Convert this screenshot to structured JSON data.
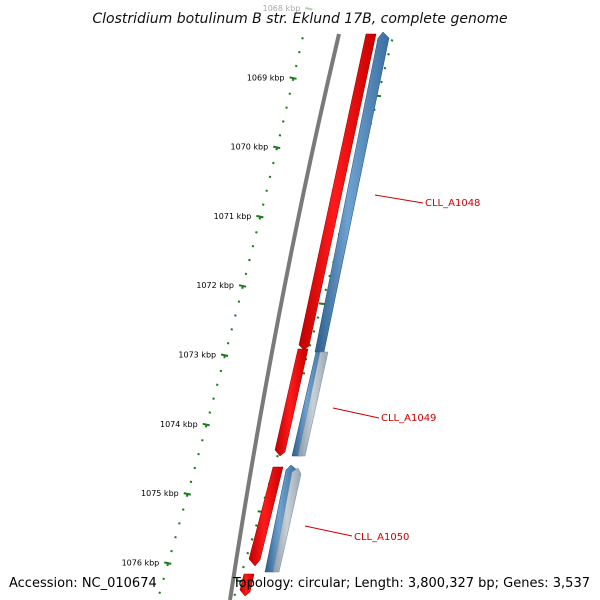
{
  "title": "Clostridium botulinum B str. Eklund 17B, complete genome",
  "footer": {
    "accession": "Accession: NC_010674",
    "summary": "Topology: circular; Length: 3,800,327 bp; Genes: 3,537"
  },
  "colors": {
    "backbone": "#777777",
    "forward_strand": "#ff0000",
    "reverse_strand": "#4a86bd",
    "reverse_strand_light": "#aab8c4",
    "tick": "#1e7a1e",
    "gene_label": "#cc0000"
  },
  "ticks": [
    {
      "label": "1068 kbp",
      "faded": true
    },
    {
      "label": "1069 kbp"
    },
    {
      "label": "1070 kbp"
    },
    {
      "label": "1071 kbp"
    },
    {
      "label": "1072 kbp"
    },
    {
      "label": "1073 kbp"
    },
    {
      "label": "1074 kbp"
    },
    {
      "label": "1075 kbp"
    },
    {
      "label": "1076 kbp"
    }
  ],
  "genes": [
    {
      "name": "CLL_A1048"
    },
    {
      "name": "CLL_A1049"
    },
    {
      "name": "CLL_A1050"
    }
  ]
}
